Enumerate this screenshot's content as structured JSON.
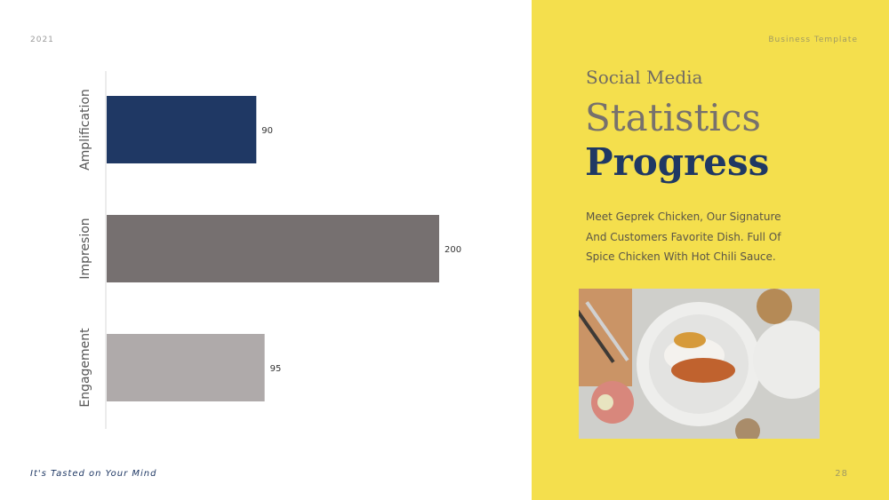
{
  "header": {
    "year": "2021",
    "brand": "Business Template"
  },
  "footer": {
    "tagline": "It's Tasted on Your Mind",
    "page_number": "28"
  },
  "content": {
    "subtitle": "Social Media",
    "title_line1": "Statistics",
    "title_line2": "Progress",
    "description_lines": [
      "Meet Geprek Chicken, Our Signature",
      "And  Customers Favorite Dish. Full Of",
      "Spice Chicken With Hot Chili Sauce."
    ]
  },
  "colors": {
    "panel_bg": "#f4df4d",
    "navy": "#1f3864",
    "gray_dark": "#767070",
    "gray_light": "#afaaaa"
  },
  "chart_data": {
    "type": "bar",
    "orientation": "horizontal",
    "categories": [
      "Amplification",
      "Impresion",
      "Engagement"
    ],
    "values": [
      90,
      200,
      95
    ],
    "bar_colors": [
      "#1f3864",
      "#767070",
      "#afaaaa"
    ],
    "data_labels": [
      "90",
      "200",
      "95"
    ],
    "xlim": [
      0,
      250
    ],
    "grid": false,
    "legend": "none"
  }
}
